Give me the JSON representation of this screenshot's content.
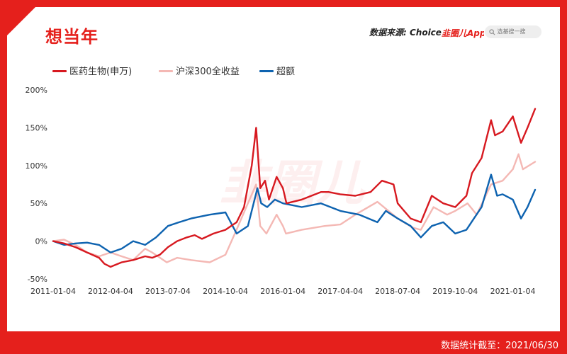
{
  "header": {
    "title": "想当年",
    "source_label": "数据来源: Choice",
    "logo_text": "韭圈儿App",
    "search_placeholder": "选基搜一搜"
  },
  "footer": {
    "text": "数据统计截至：2021/06/30"
  },
  "watermark": "韭圈儿",
  "colors": {
    "brand": "#e5201c",
    "medicine": "#d71920",
    "hs300": "#f4b8b4",
    "excess": "#0e63b0"
  },
  "chart_data": {
    "type": "line",
    "title": "",
    "xlabel": "",
    "ylabel": "",
    "ylim": [
      -50,
      200
    ],
    "yticks": [
      -50,
      0,
      50,
      100,
      150,
      200
    ],
    "ytick_labels": [
      "-50%",
      "0%",
      "50%",
      "100%",
      "150%",
      "200%"
    ],
    "xticks": [
      "2011-01-04",
      "2012-04-04",
      "2013-07-04",
      "2014-10-04",
      "2016-01-04",
      "2017-04-04",
      "2018-07-04",
      "2019-10-04",
      "2021-01-04"
    ],
    "x_range": [
      "2011-01-04",
      "2021-06-30"
    ],
    "grid": false,
    "legend_position": "top-left",
    "series": [
      {
        "name": "医药生物(申万)",
        "color": "#d71920",
        "points": [
          [
            "2011-01-04",
            0
          ],
          [
            "2011-04-01",
            -3
          ],
          [
            "2011-07-01",
            -8
          ],
          [
            "2011-10-01",
            -15
          ],
          [
            "2012-01-04",
            -22
          ],
          [
            "2012-02-15",
            -30
          ],
          [
            "2012-04-04",
            -34
          ],
          [
            "2012-07-01",
            -28
          ],
          [
            "2012-10-01",
            -25
          ],
          [
            "2013-01-04",
            -20
          ],
          [
            "2013-03-01",
            -22
          ],
          [
            "2013-05-01",
            -18
          ],
          [
            "2013-07-04",
            -8
          ],
          [
            "2013-09-15",
            0
          ],
          [
            "2013-12-01",
            5
          ],
          [
            "2014-02-01",
            8
          ],
          [
            "2014-04-01",
            3
          ],
          [
            "2014-07-01",
            10
          ],
          [
            "2014-10-04",
            15
          ],
          [
            "2015-01-01",
            25
          ],
          [
            "2015-03-01",
            45
          ],
          [
            "2015-05-01",
            100
          ],
          [
            "2015-06-05",
            150
          ],
          [
            "2015-07-08",
            70
          ],
          [
            "2015-08-15",
            80
          ],
          [
            "2015-09-15",
            55
          ],
          [
            "2015-11-15",
            85
          ],
          [
            "2016-01-04",
            70
          ],
          [
            "2016-02-01",
            50
          ],
          [
            "2016-06-01",
            55
          ],
          [
            "2016-11-01",
            65
          ],
          [
            "2017-01-01",
            65
          ],
          [
            "2017-04-04",
            62
          ],
          [
            "2017-08-01",
            60
          ],
          [
            "2017-12-01",
            65
          ],
          [
            "2018-03-01",
            80
          ],
          [
            "2018-06-01",
            75
          ],
          [
            "2018-07-04",
            50
          ],
          [
            "2018-10-15",
            30
          ],
          [
            "2019-01-04",
            25
          ],
          [
            "2019-04-01",
            60
          ],
          [
            "2019-07-01",
            50
          ],
          [
            "2019-10-04",
            45
          ],
          [
            "2020-01-01",
            60
          ],
          [
            "2020-02-15",
            90
          ],
          [
            "2020-05-01",
            110
          ],
          [
            "2020-07-15",
            160
          ],
          [
            "2020-08-15",
            140
          ],
          [
            "2020-10-15",
            145
          ],
          [
            "2021-01-04",
            165
          ],
          [
            "2021-03-10",
            130
          ],
          [
            "2021-05-01",
            150
          ],
          [
            "2021-06-30",
            175
          ]
        ]
      },
      {
        "name": "沪深300全收益",
        "color": "#f4b8b4",
        "points": [
          [
            "2011-01-04",
            0
          ],
          [
            "2011-04-01",
            2
          ],
          [
            "2011-07-01",
            -5
          ],
          [
            "2011-10-01",
            -15
          ],
          [
            "2012-01-04",
            -20
          ],
          [
            "2012-04-04",
            -15
          ],
          [
            "2012-07-01",
            -20
          ],
          [
            "2012-10-01",
            -25
          ],
          [
            "2013-01-04",
            -10
          ],
          [
            "2013-03-01",
            -15
          ],
          [
            "2013-06-25",
            -28
          ],
          [
            "2013-09-15",
            -22
          ],
          [
            "2014-01-04",
            -25
          ],
          [
            "2014-06-01",
            -28
          ],
          [
            "2014-10-04",
            -18
          ],
          [
            "2014-12-31",
            15
          ],
          [
            "2015-04-01",
            50
          ],
          [
            "2015-06-05",
            75
          ],
          [
            "2015-07-08",
            20
          ],
          [
            "2015-08-26",
            10
          ],
          [
            "2015-11-15",
            35
          ],
          [
            "2016-01-04",
            20
          ],
          [
            "2016-01-28",
            10
          ],
          [
            "2016-06-01",
            15
          ],
          [
            "2016-12-01",
            20
          ],
          [
            "2017-04-04",
            22
          ],
          [
            "2017-08-01",
            35
          ],
          [
            "2018-01-24",
            52
          ],
          [
            "2018-07-04",
            30
          ],
          [
            "2018-10-30",
            18
          ],
          [
            "2019-01-04",
            15
          ],
          [
            "2019-04-15",
            45
          ],
          [
            "2019-08-01",
            35
          ],
          [
            "2019-10-04",
            40
          ],
          [
            "2020-01-10",
            50
          ],
          [
            "2020-03-23",
            35
          ],
          [
            "2020-07-15",
            75
          ],
          [
            "2020-10-15",
            80
          ],
          [
            "2021-01-04",
            95
          ],
          [
            "2021-02-18",
            115
          ],
          [
            "2021-03-25",
            95
          ],
          [
            "2021-06-30",
            105
          ]
        ]
      },
      {
        "name": "超额",
        "color": "#0e63b0",
        "points": [
          [
            "2011-01-04",
            0
          ],
          [
            "2011-04-01",
            -5
          ],
          [
            "2011-07-01",
            -3
          ],
          [
            "2011-10-01",
            -2
          ],
          [
            "2012-01-04",
            -5
          ],
          [
            "2012-04-04",
            -15
          ],
          [
            "2012-07-01",
            -10
          ],
          [
            "2012-10-01",
            0
          ],
          [
            "2013-01-04",
            -5
          ],
          [
            "2013-04-01",
            5
          ],
          [
            "2013-07-04",
            20
          ],
          [
            "2013-10-01",
            25
          ],
          [
            "2014-01-04",
            30
          ],
          [
            "2014-06-01",
            35
          ],
          [
            "2014-10-04",
            38
          ],
          [
            "2015-01-01",
            10
          ],
          [
            "2015-04-01",
            20
          ],
          [
            "2015-06-15",
            70
          ],
          [
            "2015-07-15",
            50
          ],
          [
            "2015-09-01",
            45
          ],
          [
            "2015-11-01",
            55
          ],
          [
            "2016-01-04",
            50
          ],
          [
            "2016-06-01",
            45
          ],
          [
            "2016-11-01",
            50
          ],
          [
            "2017-04-04",
            40
          ],
          [
            "2017-09-01",
            35
          ],
          [
            "2018-01-24",
            25
          ],
          [
            "2018-04-01",
            40
          ],
          [
            "2018-07-04",
            30
          ],
          [
            "2018-10-15",
            20
          ],
          [
            "2019-01-04",
            5
          ],
          [
            "2019-04-01",
            20
          ],
          [
            "2019-07-01",
            25
          ],
          [
            "2019-10-04",
            10
          ],
          [
            "2020-01-01",
            15
          ],
          [
            "2020-03-01",
            30
          ],
          [
            "2020-05-01",
            45
          ],
          [
            "2020-07-15",
            88
          ],
          [
            "2020-09-01",
            60
          ],
          [
            "2020-10-15",
            62
          ],
          [
            "2021-01-04",
            55
          ],
          [
            "2021-03-10",
            30
          ],
          [
            "2021-05-01",
            45
          ],
          [
            "2021-06-30",
            68
          ]
        ]
      }
    ]
  }
}
